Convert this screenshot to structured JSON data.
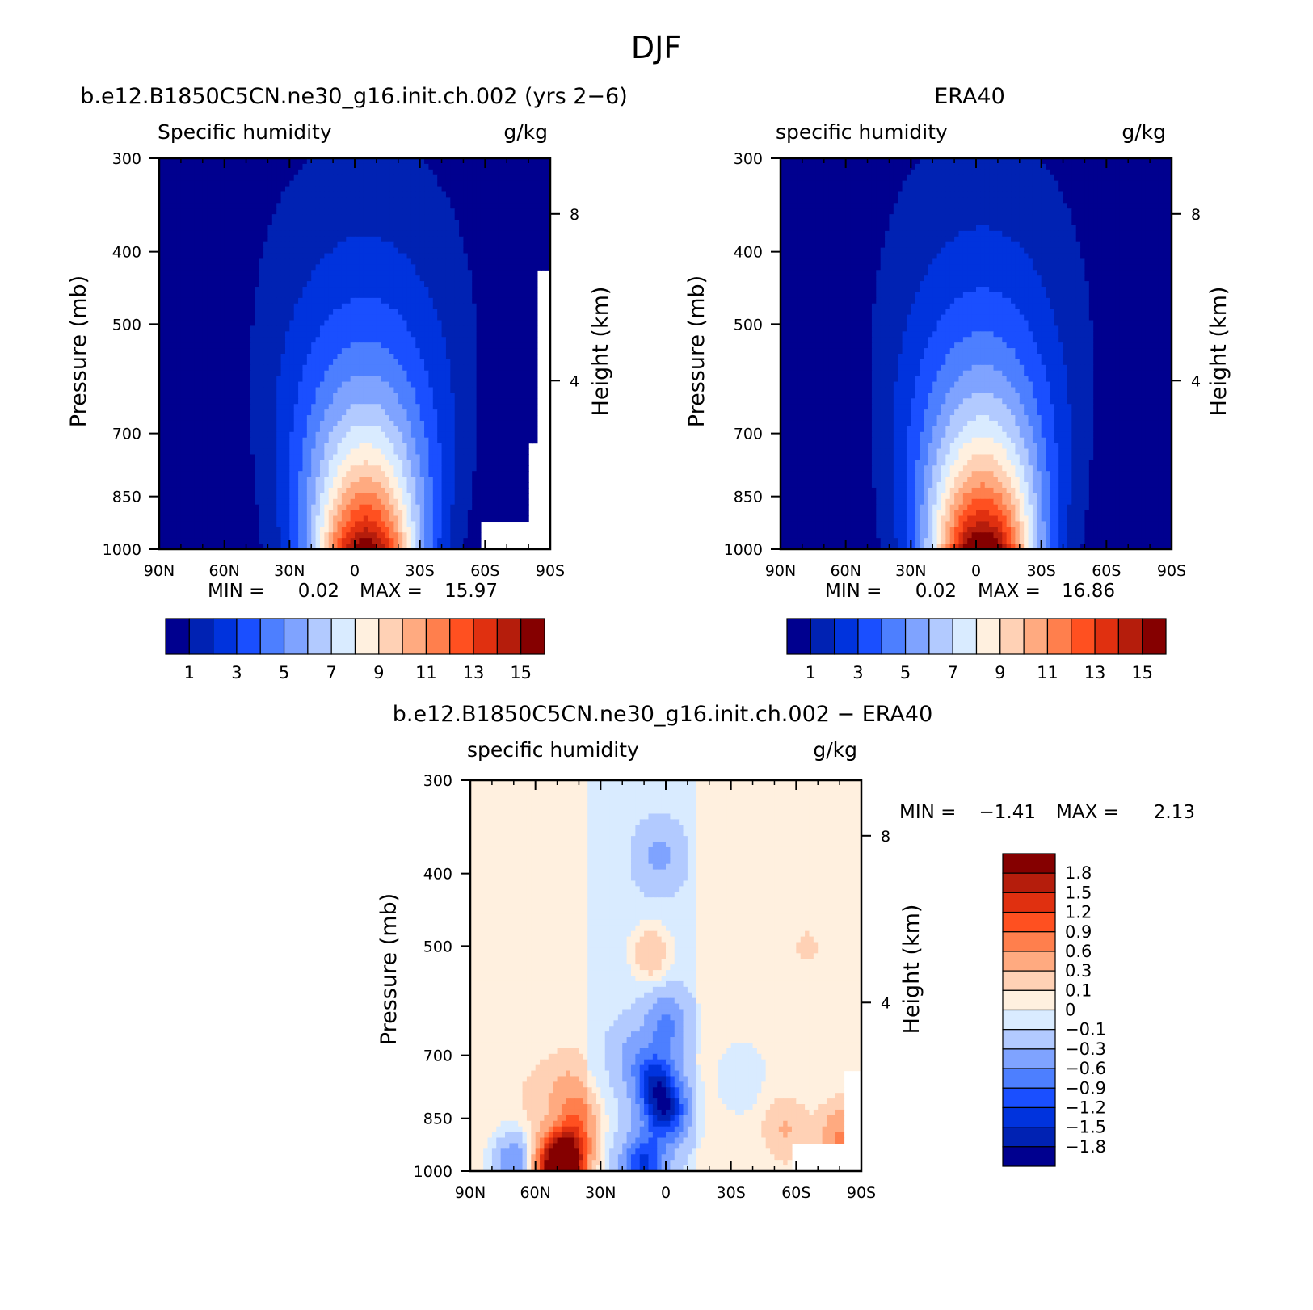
{
  "figure_title": "DJF",
  "colors": {
    "sh_scale": [
      "#00008f",
      "#0022b3",
      "#0033dd",
      "#1a4fff",
      "#4d7fff",
      "#7fa3ff",
      "#b2caff",
      "#d9ebff",
      "#fff0df",
      "#ffd1b5",
      "#ffaa80",
      "#ff7f4d",
      "#ff5020",
      "#e03010",
      "#b51d0c",
      "#850000"
    ],
    "diff_scale": [
      "#00008f",
      "#0022b3",
      "#0033dd",
      "#1a4fff",
      "#4d7fff",
      "#7fa3ff",
      "#b2caff",
      "#d9ebff",
      "#fff0df",
      "#ffd1b5",
      "#ffaa80",
      "#ff7f4d",
      "#ff5020",
      "#e03010",
      "#b51d0c",
      "#850000"
    ]
  },
  "chart_data": [
    {
      "type": "heatmap",
      "id": "model",
      "title": "b.e12.B1850C5CN.ne30_g16.init.ch.002 (yrs 2−6)",
      "subtitle_left": "Specific humidity",
      "subtitle_right": "g/kg",
      "xlabel": "",
      "ylabel": "Pressure (mb)",
      "ylabel_right": "Height (km)",
      "x_ticks": [
        "90N",
        "60N",
        "30N",
        "0",
        "30S",
        "60S",
        "90S"
      ],
      "x_range": [
        90,
        -90
      ],
      "y_ticks": [
        "300",
        "400",
        "500",
        "700",
        "850",
        "1000"
      ],
      "y_tick_values": [
        300,
        400,
        500,
        700,
        850,
        1000
      ],
      "y_range": [
        300,
        1000
      ],
      "y_scale": "log",
      "height_ticks": [
        "8",
        "4"
      ],
      "height_tick_pressures": [
        356,
        595
      ],
      "min_label": "MIN =",
      "min_value": "0.02",
      "max_label": "MAX =",
      "max_value": "15.97",
      "peak": {
        "lat": -5,
        "value": 15.97
      },
      "colorbar_ticks": [
        "1",
        "3",
        "5",
        "7",
        "9",
        "11",
        "13",
        "15"
      ],
      "colorbar_levels": [
        1,
        2,
        3,
        4,
        5,
        6,
        7,
        8,
        9,
        10,
        11,
        12,
        13,
        14,
        15
      ]
    },
    {
      "type": "heatmap",
      "id": "obs",
      "title": "ERA40",
      "subtitle_left": "specific humidity",
      "subtitle_right": "g/kg",
      "xlabel": "",
      "ylabel": "Pressure (mb)",
      "ylabel_right": "Height (km)",
      "x_ticks": [
        "90N",
        "60N",
        "30N",
        "0",
        "30S",
        "60S",
        "90S"
      ],
      "x_range": [
        90,
        -90
      ],
      "y_ticks": [
        "300",
        "400",
        "500",
        "700",
        "850",
        "1000"
      ],
      "y_tick_values": [
        300,
        400,
        500,
        700,
        850,
        1000
      ],
      "y_range": [
        300,
        1000
      ],
      "y_scale": "log",
      "height_ticks": [
        "8",
        "4"
      ],
      "height_tick_pressures": [
        356,
        595
      ],
      "min_label": "MIN =",
      "min_value": "0.02",
      "max_label": "MAX =",
      "max_value": "16.86",
      "peak": {
        "lat": -3,
        "value": 16.86
      },
      "colorbar_ticks": [
        "1",
        "3",
        "5",
        "7",
        "9",
        "11",
        "13",
        "15"
      ],
      "colorbar_levels": [
        1,
        2,
        3,
        4,
        5,
        6,
        7,
        8,
        9,
        10,
        11,
        12,
        13,
        14,
        15
      ]
    },
    {
      "type": "heatmap",
      "id": "diff",
      "title": "b.e12.B1850C5CN.ne30_g16.init.ch.002 − ERA40",
      "subtitle_left": "specific humidity",
      "subtitle_right": "g/kg",
      "xlabel": "",
      "ylabel": "Pressure (mb)",
      "ylabel_right": "Height (km)",
      "x_ticks": [
        "90N",
        "60N",
        "30N",
        "0",
        "30S",
        "60S",
        "90S"
      ],
      "x_range": [
        90,
        -90
      ],
      "y_ticks": [
        "300",
        "400",
        "500",
        "700",
        "850",
        "1000"
      ],
      "y_tick_values": [
        300,
        400,
        500,
        700,
        850,
        1000
      ],
      "y_range": [
        300,
        1000
      ],
      "y_scale": "log",
      "height_ticks": [
        "8",
        "4"
      ],
      "height_tick_pressures": [
        356,
        595
      ],
      "min_label": "MIN =",
      "min_value": "−1.41",
      "max_label": "MAX =",
      "max_value": "2.13",
      "colorbar_ticks": [
        "1.8",
        "1.5",
        "1.2",
        "0.9",
        "0.6",
        "0.3",
        "0.1",
        "0",
        "−0.1",
        "−0.3",
        "−0.6",
        "−0.9",
        "−1.2",
        "−1.5",
        "−1.8"
      ],
      "colorbar_levels": [
        1.8,
        1.5,
        1.2,
        0.9,
        0.6,
        0.3,
        0.1,
        0,
        -0.1,
        -0.3,
        -0.6,
        -0.9,
        -1.2,
        -1.5,
        -1.8
      ],
      "features": [
        {
          "lat": 50,
          "p": 985,
          "value": 2.13
        },
        {
          "lat": 44,
          "p": 960,
          "value": 1.2
        },
        {
          "lat": 40,
          "p": 860,
          "value": 0.6
        },
        {
          "lat": 45,
          "p": 780,
          "value": 0.3
        },
        {
          "lat": 58,
          "p": 800,
          "value": 0.1
        },
        {
          "lat": 70,
          "p": 980,
          "value": -0.6
        },
        {
          "lat": 0,
          "p": 830,
          "value": -1.41
        },
        {
          "lat": 5,
          "p": 760,
          "value": -1.2
        },
        {
          "lat": 10,
          "p": 980,
          "value": -1.2
        },
        {
          "lat": 0,
          "p": 640,
          "value": -0.6
        },
        {
          "lat": 15,
          "p": 700,
          "value": -0.3
        },
        {
          "lat": 3,
          "p": 380,
          "value": -0.3
        },
        {
          "lat": -35,
          "p": 750,
          "value": -0.1
        },
        {
          "lat": 7,
          "p": 510,
          "value": 0.3
        },
        {
          "lat": -55,
          "p": 880,
          "value": 0.3
        },
        {
          "lat": -80,
          "p": 900,
          "value": 0.6
        },
        {
          "lat": -65,
          "p": 500,
          "value": 0.1
        }
      ]
    }
  ]
}
